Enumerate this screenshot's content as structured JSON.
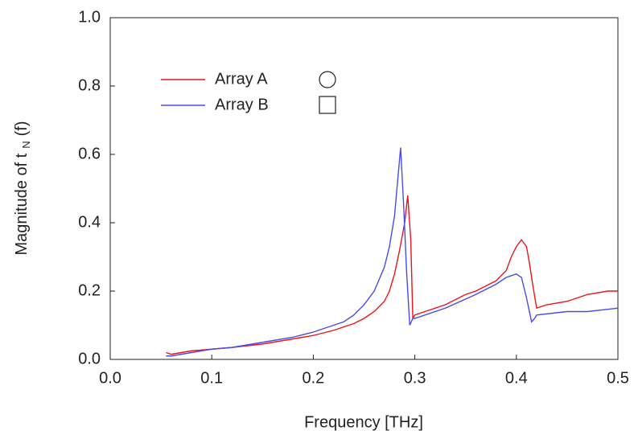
{
  "chart_data": {
    "type": "line",
    "x_label": "Frequency [THz]",
    "y_label": {
      "main": "Magnitude of t",
      "subscript": "N",
      "suffix": "(f)"
    },
    "xlim": [
      0,
      0.5
    ],
    "ylim": [
      0,
      1
    ],
    "xticks": [
      {
        "value": 0,
        "label": "0.0"
      },
      0.1,
      0.2,
      0.3,
      0.4,
      0.5
    ],
    "yticks": [
      {
        "value": 0,
        "label": "0.0"
      },
      0.2,
      0.4,
      0.6,
      0.8,
      {
        "value": 1,
        "label": "1.0"
      }
    ],
    "legend": "upper left",
    "series": [
      {
        "name": "Array A",
        "color": "#e8141e",
        "x": [
          0.055,
          0.06,
          0.07,
          0.08,
          0.1,
          0.12,
          0.15,
          0.18,
          0.2,
          0.22,
          0.24,
          0.25,
          0.26,
          0.27,
          0.275,
          0.28,
          0.285,
          0.29,
          0.293,
          0.296,
          0.298,
          0.3,
          0.31,
          0.33,
          0.35,
          0.36,
          0.38,
          0.39,
          0.395,
          0.4,
          0.405,
          0.41,
          0.413,
          0.416,
          0.42,
          0.43,
          0.45,
          0.47,
          0.49,
          0.5
        ],
        "values": [
          0.02,
          0.015,
          0.02,
          0.025,
          0.03,
          0.035,
          0.045,
          0.06,
          0.07,
          0.085,
          0.105,
          0.12,
          0.14,
          0.17,
          0.2,
          0.25,
          0.32,
          0.4,
          0.48,
          0.35,
          0.12,
          0.13,
          0.14,
          0.16,
          0.19,
          0.2,
          0.23,
          0.26,
          0.3,
          0.33,
          0.35,
          0.33,
          0.28,
          0.22,
          0.15,
          0.16,
          0.17,
          0.19,
          0.2,
          0.2
        ]
      },
      {
        "name": "Array B",
        "color": "#4a4ae8",
        "x": [
          0.055,
          0.06,
          0.07,
          0.08,
          0.1,
          0.12,
          0.15,
          0.18,
          0.2,
          0.22,
          0.23,
          0.24,
          0.25,
          0.26,
          0.27,
          0.275,
          0.28,
          0.283,
          0.286,
          0.289,
          0.292,
          0.295,
          0.298,
          0.3,
          0.33,
          0.36,
          0.38,
          0.39,
          0.4,
          0.405,
          0.41,
          0.415,
          0.418,
          0.42,
          0.45,
          0.47,
          0.5
        ],
        "values": [
          0.01,
          0.01,
          0.015,
          0.02,
          0.03,
          0.035,
          0.05,
          0.065,
          0.08,
          0.1,
          0.11,
          0.13,
          0.16,
          0.2,
          0.27,
          0.33,
          0.42,
          0.52,
          0.62,
          0.45,
          0.25,
          0.1,
          0.12,
          0.12,
          0.15,
          0.19,
          0.22,
          0.24,
          0.25,
          0.24,
          0.18,
          0.11,
          0.12,
          0.13,
          0.14,
          0.14,
          0.15
        ]
      }
    ]
  }
}
